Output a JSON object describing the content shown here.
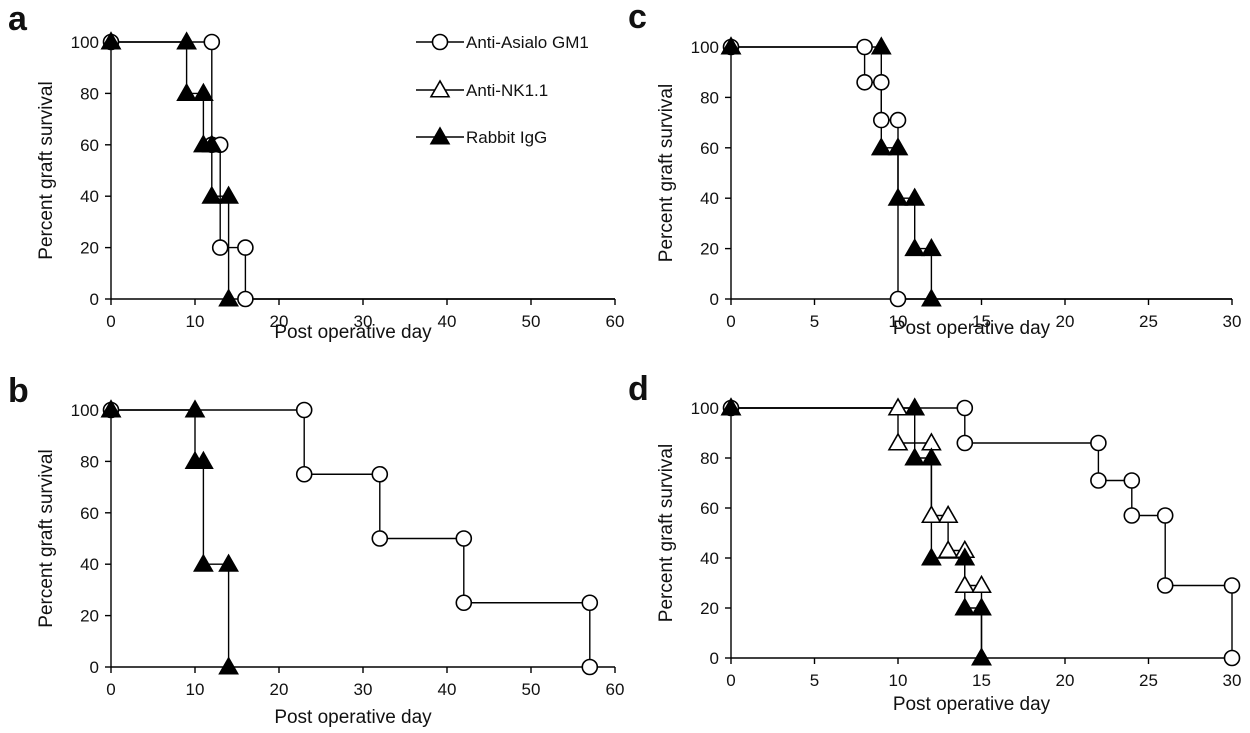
{
  "chart_data": [
    {
      "panel": "a",
      "type": "line",
      "xlabel": "Post operative day",
      "ylabel": "Percent graft survival",
      "xlim": [
        0,
        60
      ],
      "ylim": [
        0,
        100
      ],
      "xticks": [
        0,
        10,
        20,
        30,
        40,
        50,
        60
      ],
      "yticks": [
        0,
        20,
        40,
        60,
        80,
        100
      ],
      "legend_position": "top-center",
      "series": [
        {
          "name": "Anti-Asialo GM1",
          "marker": "circle-open",
          "points": [
            [
              0,
              100
            ],
            [
              12,
              100
            ],
            [
              12,
              60
            ],
            [
              13,
              60
            ],
            [
              13,
              20
            ],
            [
              16,
              20
            ],
            [
              16,
              0
            ],
            [
              60,
              0
            ]
          ]
        },
        {
          "name": "Anti-NK1.1",
          "marker": "triangle-open",
          "points": [
            [
              0,
              100
            ]
          ]
        },
        {
          "name": "Rabbit IgG",
          "marker": "triangle-filled",
          "points": [
            [
              0,
              100
            ],
            [
              9,
              100
            ],
            [
              9,
              80
            ],
            [
              11,
              80
            ],
            [
              11,
              60
            ],
            [
              12,
              60
            ],
            [
              12,
              40
            ],
            [
              14,
              40
            ],
            [
              14,
              0
            ]
          ]
        }
      ]
    },
    {
      "panel": "b",
      "type": "line",
      "xlabel": "Post operative day",
      "ylabel": "Percent graft survival",
      "xlim": [
        0,
        60
      ],
      "ylim": [
        0,
        100
      ],
      "xticks": [
        0,
        10,
        20,
        30,
        40,
        50,
        60
      ],
      "yticks": [
        0,
        20,
        40,
        60,
        80,
        100
      ],
      "series": [
        {
          "name": "Anti-Asialo GM1",
          "marker": "circle-open",
          "points": [
            [
              0,
              100
            ],
            [
              23,
              100
            ],
            [
              23,
              75
            ],
            [
              32,
              75
            ],
            [
              32,
              50
            ],
            [
              42,
              50
            ],
            [
              42,
              25
            ],
            [
              57,
              25
            ],
            [
              57,
              0
            ]
          ]
        },
        {
          "name": "Anti-NK1.1",
          "marker": "triangle-open",
          "points": [
            [
              0,
              100
            ]
          ]
        },
        {
          "name": "Rabbit IgG",
          "marker": "triangle-filled",
          "points": [
            [
              0,
              100
            ],
            [
              10,
              100
            ],
            [
              10,
              80
            ],
            [
              11,
              80
            ],
            [
              11,
              40
            ],
            [
              14,
              40
            ],
            [
              14,
              0
            ]
          ]
        }
      ]
    },
    {
      "panel": "c",
      "type": "line",
      "xlabel": "Post operative day",
      "ylabel": "Percent graft survival",
      "xlim": [
        0,
        30
      ],
      "ylim": [
        0,
        100
      ],
      "xticks": [
        0,
        5,
        10,
        15,
        20,
        25,
        30
      ],
      "yticks": [
        0,
        20,
        40,
        60,
        80,
        100
      ],
      "series": [
        {
          "name": "Anti-Asialo GM1",
          "marker": "circle-open",
          "points": [
            [
              0,
              100
            ],
            [
              8,
              100
            ],
            [
              8,
              86
            ],
            [
              9,
              86
            ],
            [
              9,
              71
            ],
            [
              10,
              71
            ],
            [
              10,
              0
            ],
            [
              30,
              0
            ]
          ]
        },
        {
          "name": "Anti-NK1.1",
          "marker": "triangle-open",
          "points": [
            [
              0,
              100
            ]
          ]
        },
        {
          "name": "Rabbit IgG",
          "marker": "triangle-filled",
          "points": [
            [
              0,
              100
            ],
            [
              9,
              100
            ],
            [
              9,
              60
            ],
            [
              10,
              60
            ],
            [
              10,
              40
            ],
            [
              11,
              40
            ],
            [
              11,
              20
            ],
            [
              12,
              20
            ],
            [
              12,
              0
            ]
          ]
        }
      ]
    },
    {
      "panel": "d",
      "type": "line",
      "xlabel": "Post operative day",
      "ylabel": "Percent graft survival",
      "xlim": [
        0,
        30
      ],
      "ylim": [
        0,
        100
      ],
      "xticks": [
        0,
        5,
        10,
        15,
        20,
        25,
        30
      ],
      "yticks": [
        0,
        20,
        40,
        60,
        80,
        100
      ],
      "series": [
        {
          "name": "Anti-Asialo GM1",
          "marker": "circle-open",
          "points": [
            [
              0,
              100
            ],
            [
              14,
              100
            ],
            [
              14,
              86
            ],
            [
              22,
              86
            ],
            [
              22,
              71
            ],
            [
              24,
              71
            ],
            [
              24,
              57
            ],
            [
              26,
              57
            ],
            [
              26,
              29
            ],
            [
              30,
              29
            ],
            [
              30,
              0
            ]
          ]
        },
        {
          "name": "Anti-NK1.1",
          "marker": "triangle-open",
          "points": [
            [
              0,
              100
            ],
            [
              10,
              100
            ],
            [
              10,
              86
            ],
            [
              12,
              86
            ],
            [
              12,
              57
            ],
            [
              13,
              57
            ],
            [
              13,
              43
            ],
            [
              14,
              43
            ],
            [
              14,
              29
            ],
            [
              15,
              29
            ],
            [
              15,
              0
            ]
          ]
        },
        {
          "name": "Rabbit IgG",
          "marker": "triangle-filled",
          "points": [
            [
              0,
              100
            ],
            [
              11,
              100
            ],
            [
              11,
              80
            ],
            [
              12,
              80
            ],
            [
              12,
              40
            ],
            [
              14,
              40
            ],
            [
              14,
              20
            ],
            [
              15,
              20
            ],
            [
              15,
              0
            ]
          ]
        }
      ]
    }
  ]
}
